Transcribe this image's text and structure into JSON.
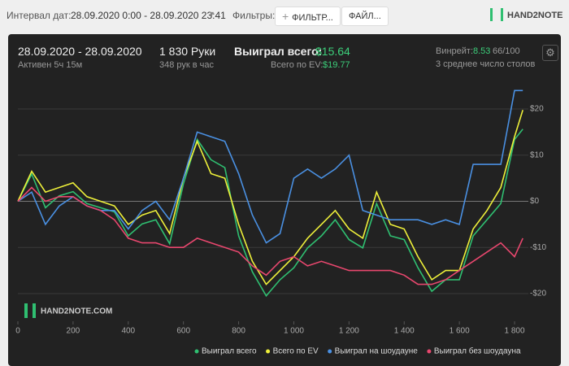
{
  "header": {
    "interval_label": "Интервал дат:",
    "interval_value": "28.09.2020 0:00 - 28.09.2020 23:41",
    "filters_label": "Фильтры:",
    "filter_button": "ФИЛЬТР...",
    "file_button": "ФАЙЛ...",
    "logo": "HAND2NOTE"
  },
  "stats": {
    "dates": "28.09.2020 - 28.09.2020",
    "active": "Активен 5ч 15м",
    "hands": "1 830 Руки",
    "hands_per_hour": "348 рук в час",
    "won_label": "Выиграл всего:",
    "won_value": "$15.64",
    "ev_label": "Всего по EV:",
    "ev_value": "$19.77",
    "winrate_label": "Винрейт:",
    "winrate_value": "8.53",
    "winrate_sample": "66/100",
    "tables": "3 среднее число столов"
  },
  "chart_data": {
    "type": "line",
    "watermark": "HAND2NOTE.COM",
    "x": [
      0,
      50,
      100,
      150,
      200,
      250,
      300,
      350,
      400,
      450,
      500,
      550,
      600,
      650,
      700,
      750,
      800,
      850,
      900,
      950,
      1000,
      1050,
      1100,
      1150,
      1200,
      1250,
      1300,
      1350,
      1400,
      1450,
      1500,
      1550,
      1600,
      1650,
      1700,
      1750,
      1800,
      1830
    ],
    "xlim": [
      0,
      1850
    ],
    "xticks": [
      0,
      200,
      400,
      600,
      800,
      {
        "value": 1000,
        "label": "1 000"
      },
      {
        "value": 1200,
        "label": "1 200"
      },
      {
        "value": 1400,
        "label": "1 400"
      },
      {
        "value": 1600,
        "label": "1 600"
      },
      {
        "value": 1800,
        "label": "1 800"
      }
    ],
    "ylim": [
      -26,
      26
    ],
    "yticks": [
      {
        "value": 20,
        "label": "$20"
      },
      {
        "value": 10,
        "label": "$10"
      },
      {
        "value": 0,
        "label": "$0"
      },
      {
        "value": -10,
        "label": "-$10"
      },
      {
        "value": -20,
        "label": "-$20"
      }
    ],
    "grid": true,
    "series": [
      {
        "name": "Выиграл всего",
        "color": "#2fbf71",
        "values": [
          0,
          5.9,
          -1.4,
          1.2,
          2.1,
          -0.5,
          -1.4,
          -2.3,
          -7.5,
          -4.9,
          -4,
          -9.2,
          3.8,
          13.4,
          9,
          7.3,
          -7.5,
          -15.3,
          -20.5,
          -17,
          -14.4,
          -10.1,
          -7.5,
          -4,
          -8.3,
          -10.1,
          -0.5,
          -7.5,
          -8.3,
          -14.4,
          -19.5,
          -17,
          -17,
          -7.5,
          -4,
          -0.5,
          13.4,
          15.64
        ]
      },
      {
        "name": "Всего по EV",
        "color": "#eef03a",
        "values": [
          0,
          6.5,
          2,
          3,
          4,
          1,
          0,
          -1,
          -5,
          -3,
          -2,
          -7,
          5,
          13,
          6,
          5,
          -5,
          -13,
          -18,
          -15,
          -12,
          -8,
          -5,
          -2,
          -6,
          -8,
          2,
          -5,
          -6,
          -12,
          -17,
          -15,
          -15,
          -6,
          -2,
          3,
          14,
          19.77
        ]
      },
      {
        "name": "Выиграл на шоудауне",
        "color": "#4a90e2",
        "values": [
          0,
          2,
          -5,
          -1,
          1,
          -1,
          -2,
          -2,
          -6,
          -2,
          0,
          -4,
          5,
          15,
          14,
          13,
          6,
          -3,
          -9,
          -7,
          5,
          7,
          5,
          7,
          10,
          -2,
          -3,
          -4,
          -4,
          -4,
          -5,
          -4,
          -5,
          8,
          8,
          8,
          24,
          24
        ]
      },
      {
        "name": "Выиграл без шоудауна",
        "color": "#e8476e",
        "values": [
          0,
          3,
          0,
          1,
          1,
          -1,
          -2,
          -4,
          -8,
          -9,
          -9,
          -10,
          -10,
          -8,
          -9,
          -10,
          -11,
          -14,
          -16,
          -13,
          -12,
          -14,
          -13,
          -14,
          -15,
          -15,
          -15,
          -15,
          -16,
          -18,
          -18,
          -17,
          -15,
          -13,
          -11,
          -9,
          -12,
          -8
        ]
      }
    ]
  }
}
